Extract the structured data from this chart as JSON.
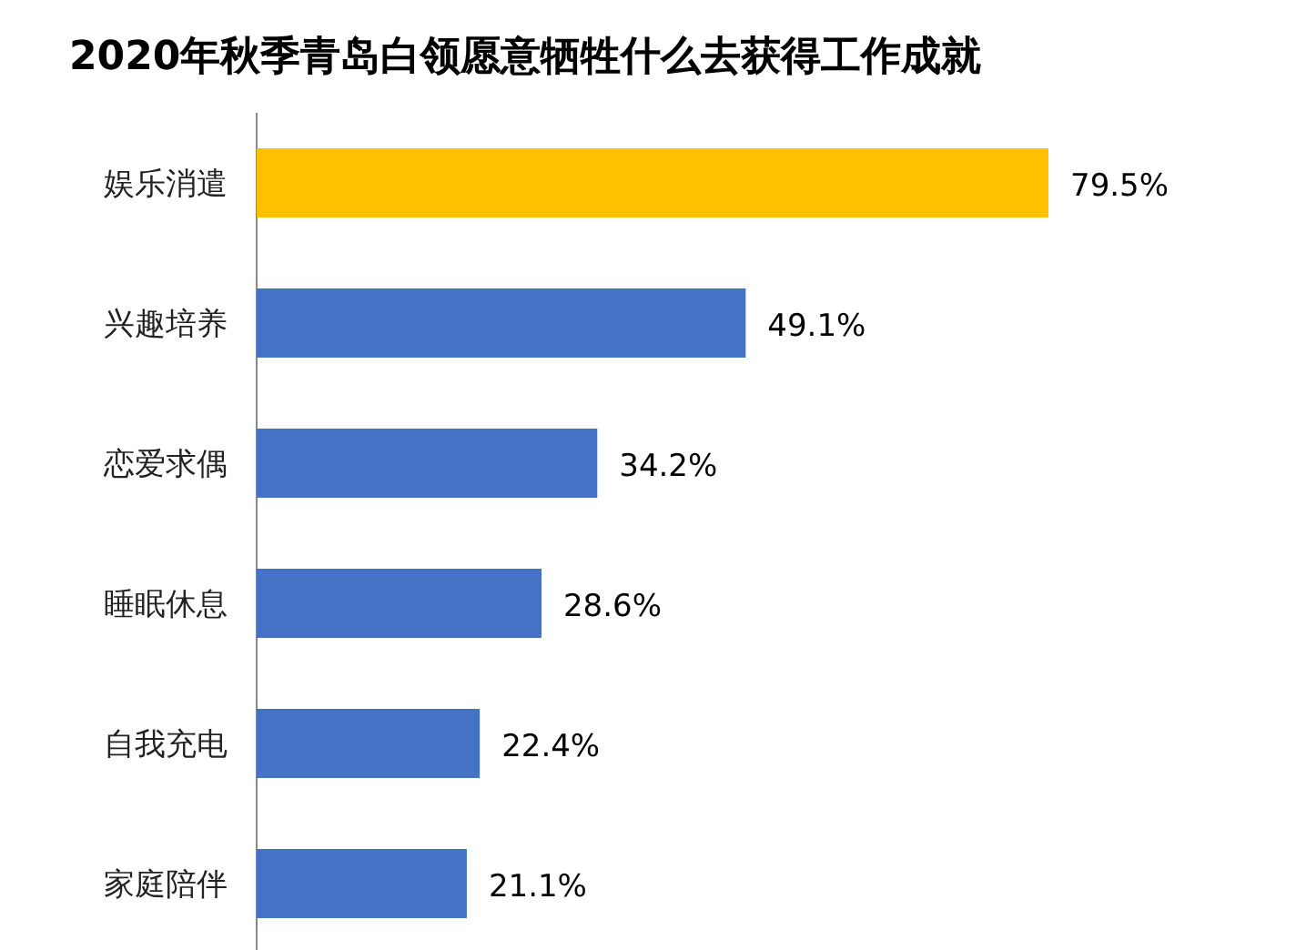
{
  "chart_data": {
    "type": "bar",
    "orientation": "horizontal",
    "title": "2020年秋季青岛白领愿意牺牲什么去获得工作成就",
    "categories": [
      "娱乐消遣",
      "兴趣培养",
      "恋爱求偶",
      "睡眠休息",
      "自我充电",
      "家庭陪伴"
    ],
    "values": [
      79.5,
      49.1,
      34.2,
      28.6,
      22.4,
      21.1
    ],
    "value_labels": [
      "79.5%",
      "49.1%",
      "34.2%",
      "28.6%",
      "22.4%",
      "21.1%"
    ],
    "colors": [
      "#ffc000",
      "#4472c4",
      "#4472c4",
      "#4472c4",
      "#4472c4",
      "#4472c4"
    ]
  }
}
